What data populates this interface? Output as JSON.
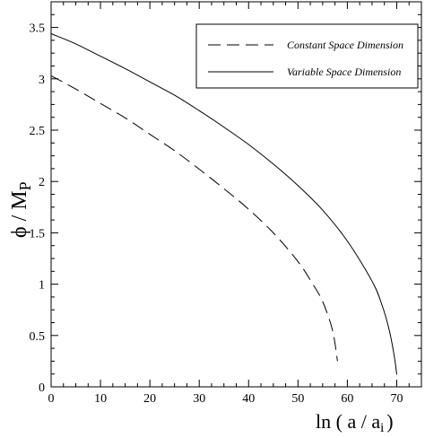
{
  "chart_data": {
    "type": "line",
    "xlabel": "ln ( a / a",
    "xlabel_sub": "i",
    "xlabel_close": ")",
    "ylabel": "ϕ / M",
    "ylabel_sub": "P",
    "xlim": [
      0,
      75
    ],
    "ylim": [
      0,
      3.75
    ],
    "x_ticks": [
      0,
      10,
      20,
      30,
      40,
      50,
      60,
      70
    ],
    "y_ticks": [
      0,
      0.5,
      1,
      1.5,
      2,
      2.5,
      3,
      3.5
    ],
    "grid": false,
    "legend_position": "top-right",
    "series": [
      {
        "name": "Constant Space Dimension",
        "style": "dashed",
        "color": "#000000",
        "points": [
          [
            0,
            3.03
          ],
          [
            5,
            2.9
          ],
          [
            10,
            2.76
          ],
          [
            15,
            2.62
          ],
          [
            20,
            2.46
          ],
          [
            25,
            2.3
          ],
          [
            30,
            2.12
          ],
          [
            35,
            1.93
          ],
          [
            40,
            1.73
          ],
          [
            45,
            1.5
          ],
          [
            50,
            1.22
          ],
          [
            53,
            1.0
          ],
          [
            55,
            0.83
          ],
          [
            57,
            0.55
          ],
          [
            58,
            0.25
          ]
        ]
      },
      {
        "name": "Variable Space Dimension",
        "style": "solid",
        "color": "#000000",
        "points": [
          [
            0,
            3.44
          ],
          [
            5,
            3.34
          ],
          [
            10,
            3.22
          ],
          [
            15,
            3.1
          ],
          [
            20,
            2.97
          ],
          [
            25,
            2.84
          ],
          [
            30,
            2.69
          ],
          [
            35,
            2.53
          ],
          [
            40,
            2.36
          ],
          [
            45,
            2.17
          ],
          [
            50,
            1.96
          ],
          [
            55,
            1.72
          ],
          [
            60,
            1.42
          ],
          [
            65,
            1.03
          ],
          [
            67,
            0.8
          ],
          [
            68.5,
            0.55
          ],
          [
            69.5,
            0.3
          ],
          [
            70,
            0.12
          ]
        ]
      }
    ]
  }
}
